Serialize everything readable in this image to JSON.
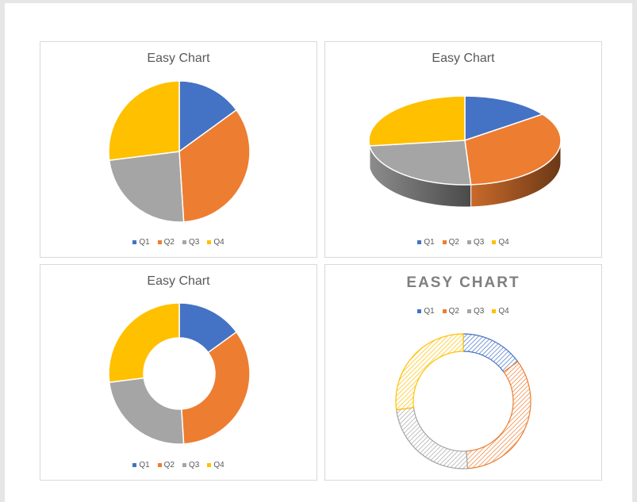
{
  "colors": {
    "Q1": "#4472c4",
    "Q2": "#ed7d31",
    "Q3": "#a5a5a5",
    "Q4": "#ffc000"
  },
  "chart_data": [
    {
      "type": "pie",
      "title": "Easy Chart",
      "variant": "pie-2d",
      "categories": [
        "Q1",
        "Q2",
        "Q3",
        "Q4"
      ],
      "values": [
        15,
        34,
        24,
        27
      ],
      "legend_position": "bottom"
    },
    {
      "type": "pie",
      "title": "Easy Chart",
      "variant": "pie-3d",
      "categories": [
        "Q1",
        "Q2",
        "Q3",
        "Q4"
      ],
      "values": [
        15,
        34,
        24,
        27
      ],
      "legend_position": "bottom"
    },
    {
      "type": "pie",
      "title": "Easy Chart",
      "variant": "doughnut",
      "categories": [
        "Q1",
        "Q2",
        "Q3",
        "Q4"
      ],
      "values": [
        15,
        34,
        24,
        27
      ],
      "legend_position": "bottom"
    },
    {
      "type": "pie",
      "title": "EASY CHART",
      "variant": "doughnut-hatched",
      "categories": [
        "Q1",
        "Q2",
        "Q3",
        "Q4"
      ],
      "values": [
        15,
        34,
        24,
        27
      ],
      "legend_position": "top"
    }
  ]
}
